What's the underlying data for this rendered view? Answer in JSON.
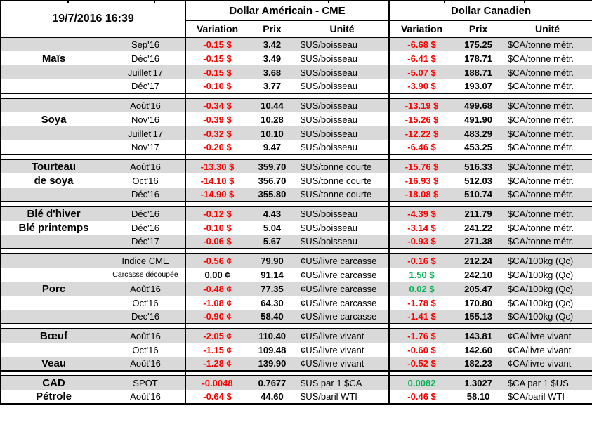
{
  "header": {
    "timestamp": "19/7/2016 16:39",
    "group_us": "Dollar Américain - CME",
    "group_ca": "Dollar Canadien",
    "col_variation": "Variation",
    "col_prix": "Prix",
    "col_unite": "Unité"
  },
  "colors": {
    "negative": "#ff0000",
    "positive": "#00b050",
    "stripe": "#d9d9d9",
    "border": "#000000"
  },
  "sections": [
    {
      "name": "Maïs",
      "rows": [
        {
          "label": "",
          "month": "Sep'16",
          "us": {
            "var": "-0.15 $",
            "sign": "neg",
            "prix": "3.42",
            "unit": "$US/boisseau"
          },
          "ca": {
            "var": "-6.68 $",
            "sign": "neg",
            "prix": "175.25",
            "unit": "$CA/tonne métr."
          }
        },
        {
          "label": "Maïs",
          "month": "Déc'16",
          "us": {
            "var": "-0.15 $",
            "sign": "neg",
            "prix": "3.49",
            "unit": "$US/boisseau"
          },
          "ca": {
            "var": "-6.41 $",
            "sign": "neg",
            "prix": "178.71",
            "unit": "$CA/tonne métr."
          }
        },
        {
          "label": "",
          "month": "Juillet'17",
          "us": {
            "var": "-0.15 $",
            "sign": "neg",
            "prix": "3.68",
            "unit": "$US/boisseau"
          },
          "ca": {
            "var": "-5.07 $",
            "sign": "neg",
            "prix": "188.71",
            "unit": "$CA/tonne métr."
          }
        },
        {
          "label": "",
          "month": "Déc'17",
          "us": {
            "var": "-0.10 $",
            "sign": "neg",
            "prix": "3.77",
            "unit": "$US/boisseau"
          },
          "ca": {
            "var": "-3.90 $",
            "sign": "neg",
            "prix": "193.07",
            "unit": "$CA/tonne métr."
          }
        }
      ]
    },
    {
      "name": "Soya",
      "rows": [
        {
          "label": "",
          "month": "Août'16",
          "us": {
            "var": "-0.34 $",
            "sign": "neg",
            "prix": "10.44",
            "unit": "$US/boisseau"
          },
          "ca": {
            "var": "-13.19 $",
            "sign": "neg",
            "prix": "499.68",
            "unit": "$CA/tonne métr."
          }
        },
        {
          "label": "Soya",
          "month": "Nov'16",
          "us": {
            "var": "-0.39 $",
            "sign": "neg",
            "prix": "10.28",
            "unit": "$US/boisseau"
          },
          "ca": {
            "var": "-15.26 $",
            "sign": "neg",
            "prix": "491.90",
            "unit": "$CA/tonne métr."
          }
        },
        {
          "label": "",
          "month": "Juillet'17",
          "us": {
            "var": "-0.32 $",
            "sign": "neg",
            "prix": "10.10",
            "unit": "$US/boisseau"
          },
          "ca": {
            "var": "-12.22 $",
            "sign": "neg",
            "prix": "483.29",
            "unit": "$CA/tonne métr."
          }
        },
        {
          "label": "",
          "month": "Nov'17",
          "us": {
            "var": "-0.20 $",
            "sign": "neg",
            "prix": "9.47",
            "unit": "$US/boisseau"
          },
          "ca": {
            "var": "-6.46 $",
            "sign": "neg",
            "prix": "453.25",
            "unit": "$CA/tonne métr."
          }
        }
      ]
    },
    {
      "name": "Tourteau de soya",
      "rows": [
        {
          "label": "Tourteau",
          "month": "Août'16",
          "us": {
            "var": "-13.30 $",
            "sign": "neg",
            "prix": "359.70",
            "unit": "$US/tonne courte"
          },
          "ca": {
            "var": "-15.76 $",
            "sign": "neg",
            "prix": "516.33",
            "unit": "$CA/tonne métr."
          }
        },
        {
          "label": "de soya",
          "month": "Oct'16",
          "us": {
            "var": "-14.10 $",
            "sign": "neg",
            "prix": "356.70",
            "unit": "$US/tonne courte"
          },
          "ca": {
            "var": "-16.93 $",
            "sign": "neg",
            "prix": "512.03",
            "unit": "$CA/tonne métr."
          }
        },
        {
          "label": "",
          "month": "Déc'16",
          "us": {
            "var": "-14.90 $",
            "sign": "neg",
            "prix": "355.80",
            "unit": "$US/tonne courte"
          },
          "ca": {
            "var": "-18.08 $",
            "sign": "neg",
            "prix": "510.74",
            "unit": "$CA/tonne métr."
          }
        }
      ]
    },
    {
      "name": "Blé",
      "rows": [
        {
          "label": "Blé d'hiver",
          "month": "Déc'16",
          "us": {
            "var": "-0.12 $",
            "sign": "neg",
            "prix": "4.43",
            "unit": "$US/boisseau"
          },
          "ca": {
            "var": "-4.39 $",
            "sign": "neg",
            "prix": "211.79",
            "unit": "$CA/tonne métr."
          }
        },
        {
          "label": "Blé printemps",
          "month": "Déc'16",
          "us": {
            "var": "-0.10 $",
            "sign": "neg",
            "prix": "5.04",
            "unit": "$US/boisseau"
          },
          "ca": {
            "var": "-3.14 $",
            "sign": "neg",
            "prix": "241.22",
            "unit": "$CA/tonne métr."
          }
        },
        {
          "label": "",
          "month": "Déc'17",
          "us": {
            "var": "-0.06 $",
            "sign": "neg",
            "prix": "5.67",
            "unit": "$US/boisseau"
          },
          "ca": {
            "var": "-0.93 $",
            "sign": "neg",
            "prix": "271.38",
            "unit": "$CA/tonne métr."
          }
        }
      ]
    },
    {
      "name": "Porc",
      "rows": [
        {
          "label": "",
          "month": "Indice CME",
          "us": {
            "var": "-0.56 ¢",
            "sign": "neg",
            "prix": "79.90",
            "unit": "¢US/livre carcasse"
          },
          "ca": {
            "var": "-0.16 $",
            "sign": "neg",
            "prix": "212.24",
            "unit": "$CA/100kg (Qc)"
          }
        },
        {
          "label": "",
          "month": "Carcasse découpée",
          "month_small": true,
          "us": {
            "var": "0.00 ¢",
            "sign": "zero",
            "prix": "91.14",
            "unit": "¢US/livre carcasse"
          },
          "ca": {
            "var": "1.50 $",
            "sign": "pos",
            "prix": "242.10",
            "unit": "$CA/100kg (Qc)"
          }
        },
        {
          "label": "Porc",
          "month": "Août'16",
          "us": {
            "var": "-0.48 ¢",
            "sign": "neg",
            "prix": "77.35",
            "unit": "¢US/livre carcasse"
          },
          "ca": {
            "var": "0.02 $",
            "sign": "pos",
            "prix": "205.47",
            "unit": "$CA/100kg (Qc)"
          }
        },
        {
          "label": "",
          "month": "Oct'16",
          "us": {
            "var": "-1.08 ¢",
            "sign": "neg",
            "prix": "64.30",
            "unit": "¢US/livre carcasse"
          },
          "ca": {
            "var": "-1.78 $",
            "sign": "neg",
            "prix": "170.80",
            "unit": "$CA/100kg (Qc)"
          }
        },
        {
          "label": "",
          "month": "Dec'16",
          "us": {
            "var": "-0.90 ¢",
            "sign": "neg",
            "prix": "58.40",
            "unit": "¢US/livre carcasse"
          },
          "ca": {
            "var": "-1.41 $",
            "sign": "neg",
            "prix": "155.13",
            "unit": "$CA/100kg (Qc)"
          }
        }
      ]
    },
    {
      "name": "Bœuf / Veau",
      "rows": [
        {
          "label": "Bœuf",
          "month": "Août'16",
          "us": {
            "var": "-2.05 ¢",
            "sign": "neg",
            "prix": "110.40",
            "unit": "¢US/livre vivant"
          },
          "ca": {
            "var": "-1.76 $",
            "sign": "neg",
            "prix": "143.81",
            "unit": "¢CA/livre vivant"
          }
        },
        {
          "label": "",
          "month": "Oct'16",
          "us": {
            "var": "-1.15 ¢",
            "sign": "neg",
            "prix": "109.48",
            "unit": "¢US/livre vivant"
          },
          "ca": {
            "var": "-0.60 $",
            "sign": "neg",
            "prix": "142.60",
            "unit": "¢CA/livre vivant"
          }
        },
        {
          "label": "Veau",
          "month": "Août'16",
          "us": {
            "var": "-1.28 ¢",
            "sign": "neg",
            "prix": "139.90",
            "unit": "¢US/livre vivant"
          },
          "ca": {
            "var": "-0.52 $",
            "sign": "neg",
            "prix": "182.23",
            "unit": "¢CA/livre vivant"
          }
        }
      ]
    },
    {
      "name": "CAD / Pétrole",
      "rows": [
        {
          "label": "CAD",
          "month": "SPOT",
          "us": {
            "var": "-0.0048",
            "sign": "neg",
            "prix": "0.7677",
            "unit": "$US par 1 $CA"
          },
          "ca": {
            "var": "0.0082",
            "sign": "pos",
            "prix": "1.3027",
            "unit": "$CA par 1 $US"
          }
        },
        {
          "label": "Pétrole",
          "month": "Août'16",
          "us": {
            "var": "-0.64 $",
            "sign": "neg",
            "prix": "44.60",
            "unit": "$US/baril WTI"
          },
          "ca": {
            "var": "-0.46 $",
            "sign": "neg",
            "prix": "58.10",
            "unit": "$CA/baril WTI"
          }
        }
      ]
    }
  ]
}
